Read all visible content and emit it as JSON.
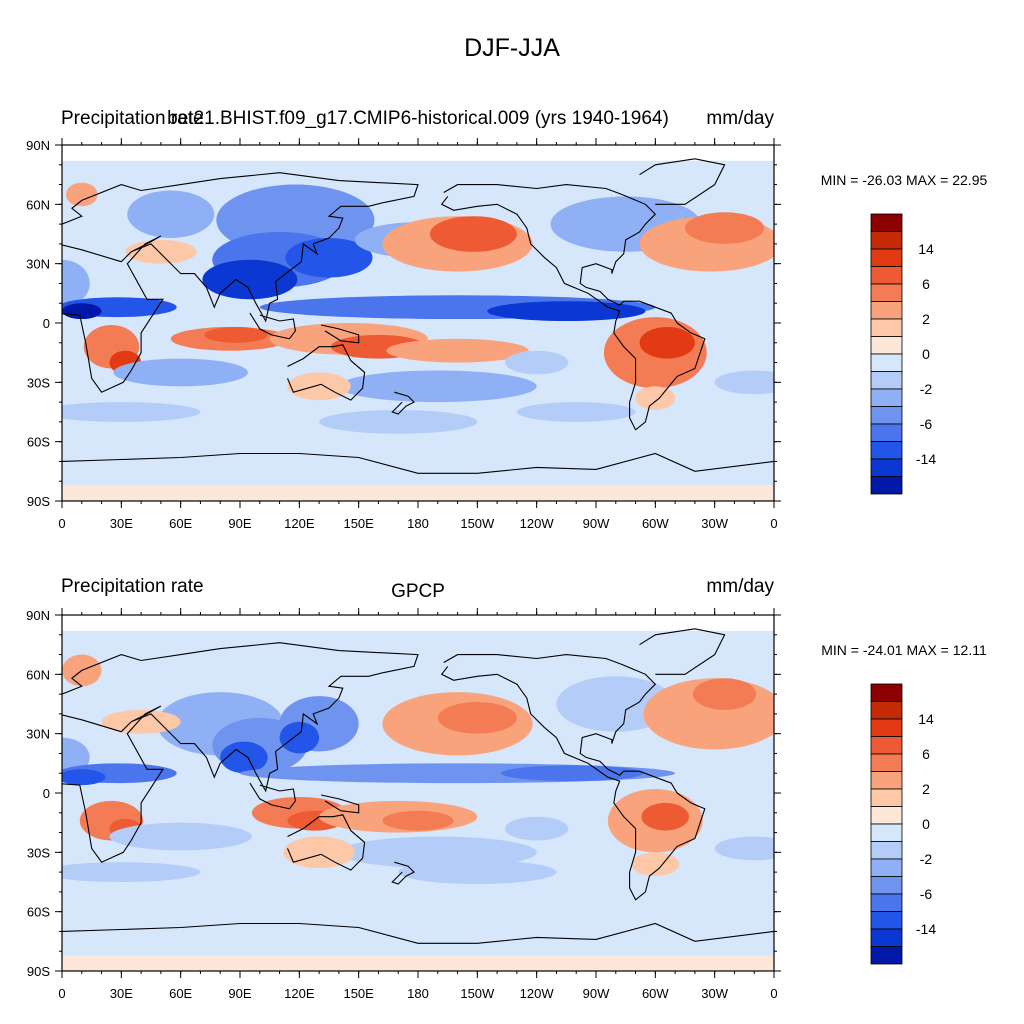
{
  "figure_title": "DJF-JJA",
  "colors": {
    "land_outline": "#000000",
    "ocean_base": "#d6e6fb",
    "neg_levels": [
      "#d6e6fb",
      "#b4cdf8",
      "#8fb0f4",
      "#6e94f0",
      "#4a75ec",
      "#2355e8",
      "#0b38d2",
      "#0218a8",
      "#01027a"
    ],
    "pos_levels": [
      "#fde7d8",
      "#fcc8a8",
      "#f9a37c",
      "#f47c55",
      "#ee5a33",
      "#e23a13",
      "#c42a05",
      "#8c0000"
    ]
  },
  "x_ticks": [
    "0",
    "30E",
    "60E",
    "90E",
    "120E",
    "150E",
    "180",
    "150W",
    "120W",
    "90W",
    "60W",
    "30W",
    "0"
  ],
  "y_ticks": [
    "90N",
    "60N",
    "30N",
    "0",
    "30S",
    "60S",
    "90S"
  ],
  "panels": [
    {
      "left_title": "Precipitation rate",
      "center_title": "bet21.BHIST.f09_g17.CMIP6-historical.009 (yrs 1940-1964)",
      "right_title": "mm/day",
      "minmax": "MIN = -26.03 MAX =  22.95",
      "colorbar_labels": [
        "14",
        "6",
        "2",
        "0",
        "-2",
        "-6",
        "-14"
      ]
    },
    {
      "left_title": "Precipitation rate",
      "center_title": "GPCP",
      "right_title": "mm/day",
      "minmax": "MIN = -24.01 MAX =  12.11",
      "colorbar_labels": [
        "14",
        "6",
        "2",
        "0",
        "-2",
        "-6",
        "-14"
      ]
    }
  ]
}
